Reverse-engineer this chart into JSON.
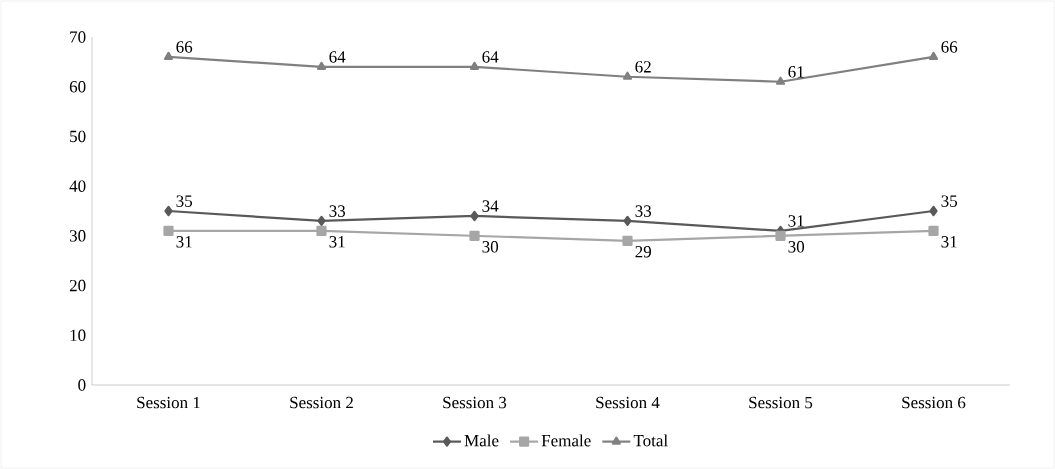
{
  "chart_data": {
    "type": "line",
    "categories": [
      "Session 1",
      "Session 2",
      "Session 3",
      "Session 4",
      "Session 5",
      "Session 6"
    ],
    "series": [
      {
        "name": "Male",
        "color": "#595959",
        "marker": "diamond",
        "values": [
          35,
          33,
          34,
          33,
          31,
          35
        ]
      },
      {
        "name": "Female",
        "color": "#a6a6a6",
        "marker": "square",
        "values": [
          31,
          31,
          30,
          29,
          30,
          31
        ]
      },
      {
        "name": "Total",
        "color": "#808080",
        "marker": "triangle",
        "values": [
          66,
          64,
          64,
          62,
          61,
          66
        ]
      }
    ],
    "ylim": [
      0,
      70
    ],
    "yticks": [
      0,
      10,
      20,
      30,
      40,
      50,
      60,
      70
    ],
    "grid": false,
    "legend": "bottom",
    "data_labels": true,
    "line_style": "solid"
  }
}
